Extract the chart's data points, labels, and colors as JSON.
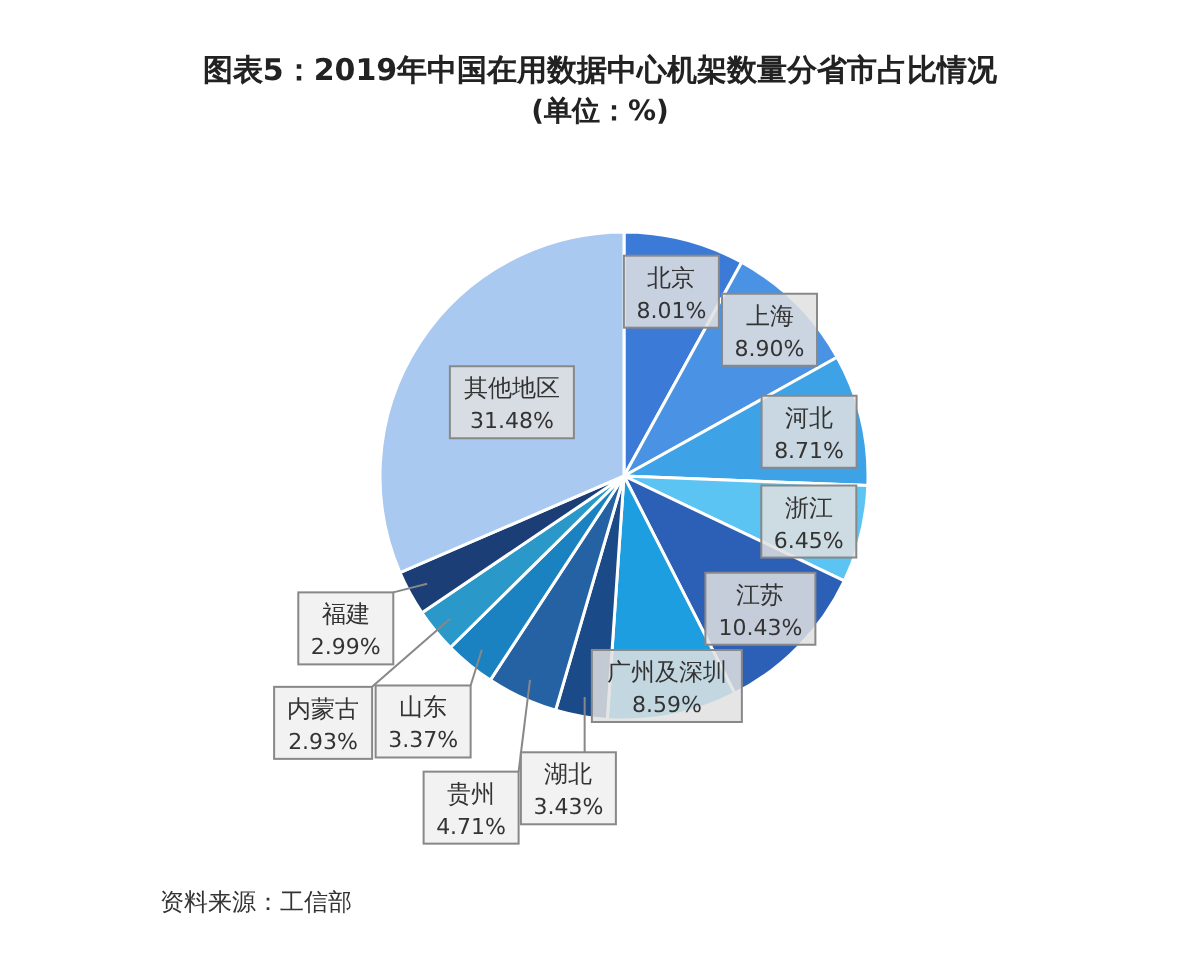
{
  "chart_data": {
    "type": "pie",
    "title": "图表5：2019年中国在用数据中心机架数量分省市占比情况",
    "subtitle": "(单位：%)",
    "categories": [
      "北京",
      "上海",
      "河北",
      "浙江",
      "江苏",
      "广州及深圳",
      "湖北",
      "贵州",
      "山东",
      "内蒙古",
      "福建",
      "其他地区"
    ],
    "values": [
      8.01,
      8.9,
      8.71,
      6.45,
      10.43,
      8.59,
      3.43,
      4.71,
      3.37,
      2.93,
      2.99,
      31.48
    ],
    "colors": [
      "#3b7ad6",
      "#4a92e4",
      "#3ea2e6",
      "#5cc4f2",
      "#2c5fb6",
      "#1d9ee0",
      "#1b4a88",
      "#2462a4",
      "#1b82c2",
      "#2a98c8",
      "#1c3e76",
      "#a9c9f1"
    ],
    "value_labels": [
      "8.01%",
      "8.90%",
      "8.71%",
      "6.45%",
      "10.43%",
      "8.59%",
      "3.43%",
      "4.71%",
      "3.37%",
      "2.93%",
      "2.99%",
      "31.48%"
    ],
    "annotations": [
      "资料来源：工信部"
    ]
  }
}
